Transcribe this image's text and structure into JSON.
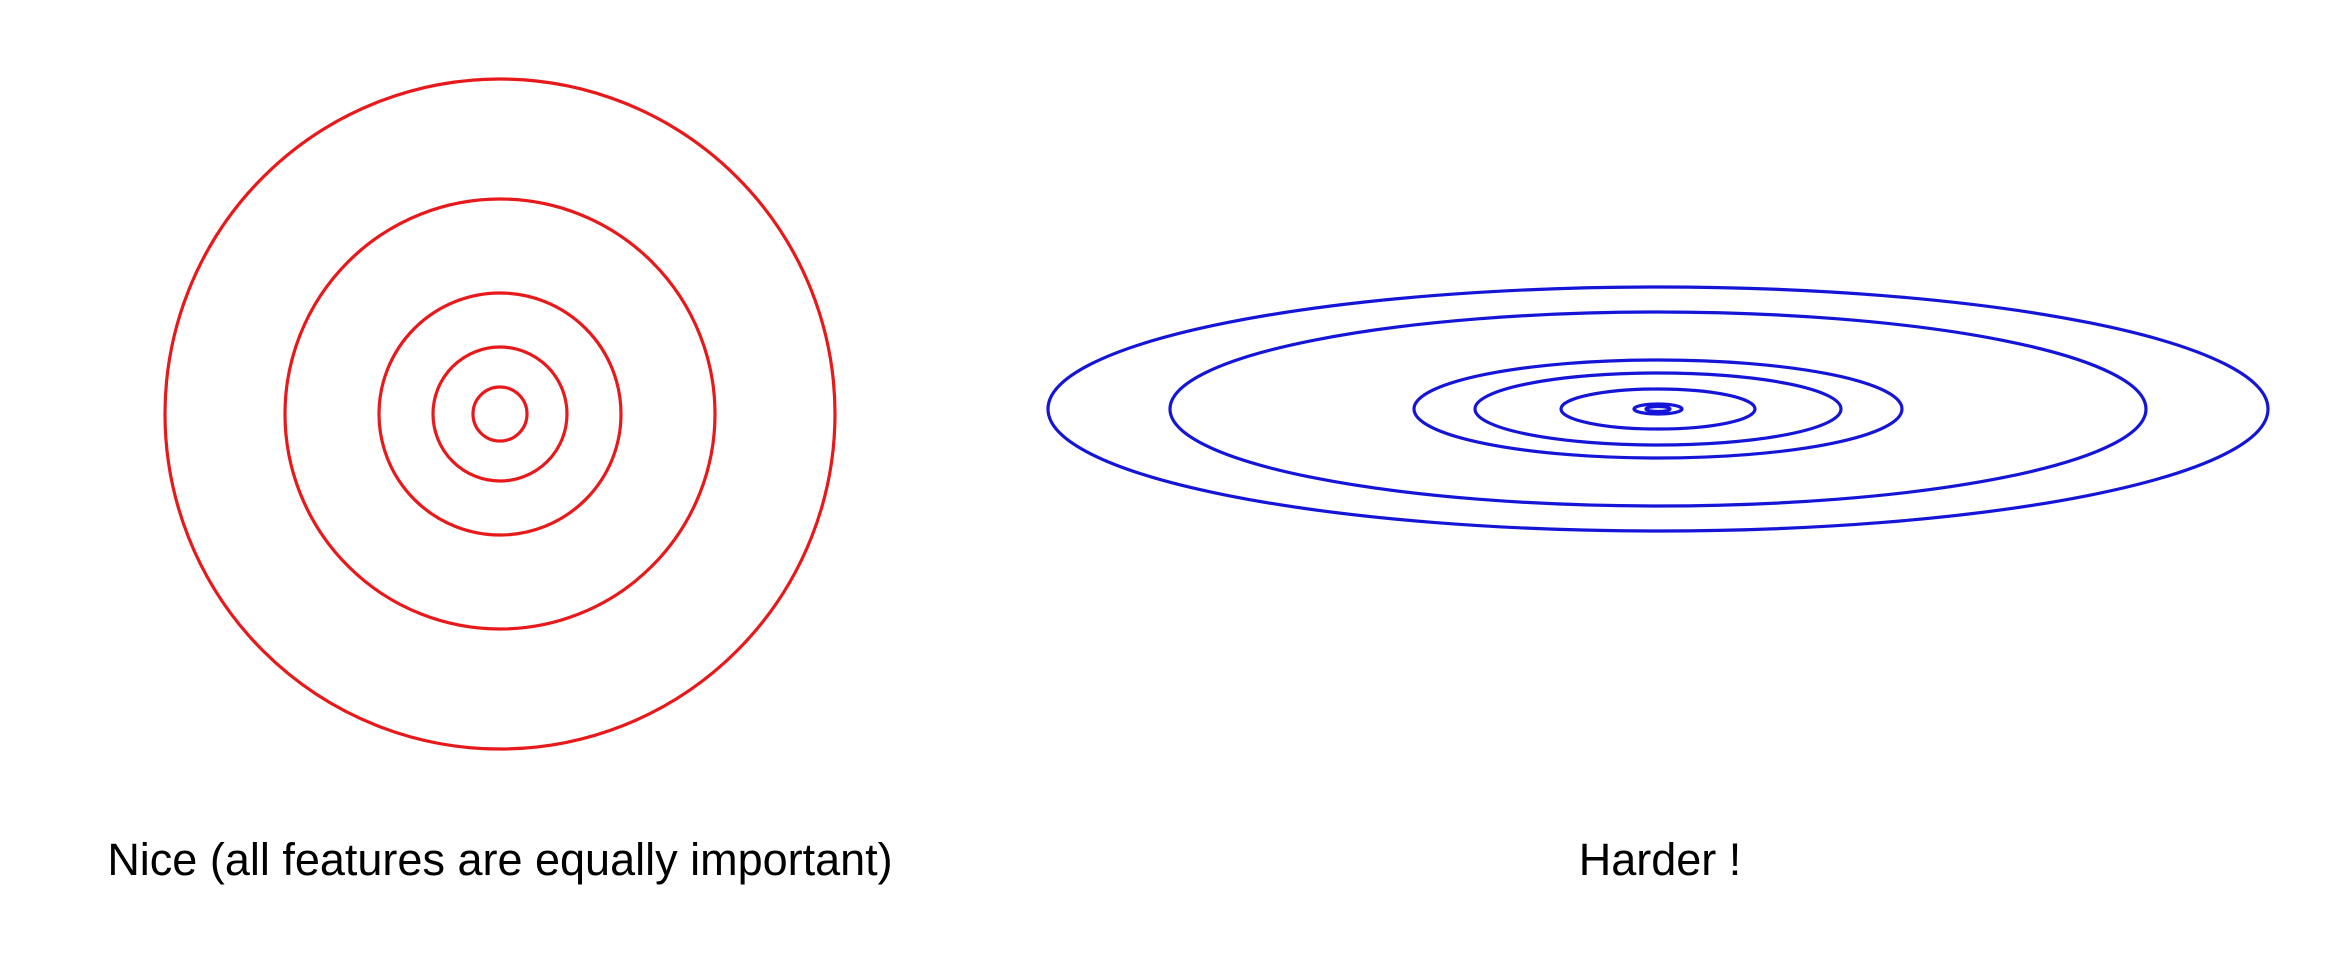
{
  "colors": {
    "left_contours": "#e8191b",
    "right_contours": "#1515d8",
    "background": "#ffffff",
    "text": "#000000"
  },
  "left_panel": {
    "caption": "Nice (all features are equally important)",
    "contour_shape": "circle",
    "contour_count": 5
  },
  "right_panel": {
    "caption": "Harder !",
    "contour_shape": "ellipse",
    "contour_count": 7
  }
}
